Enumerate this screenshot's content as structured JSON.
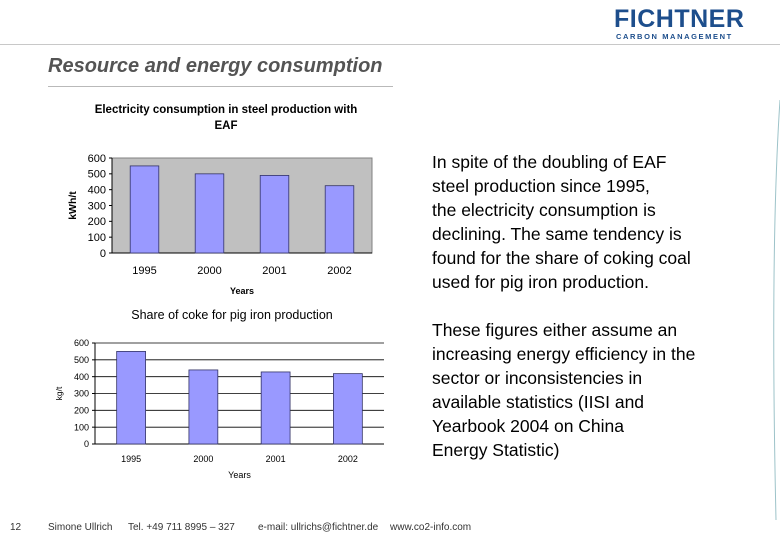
{
  "brand": {
    "name": "FICHTNER",
    "subtitle": "CARBON MANAGEMENT",
    "color": "#1d4e8c"
  },
  "slide": {
    "title": "Resource and energy consumption",
    "page_number": "12"
  },
  "chart_data": [
    {
      "type": "bar",
      "title": "Electricity consumption in steel production with EAF",
      "title_lines": [
        "Electricity consumption in steel production with",
        "EAF"
      ],
      "xlabel": "Years",
      "ylabel": "kWh/t",
      "categories": [
        "1995",
        "2000",
        "2001",
        "2002"
      ],
      "values": [
        550,
        500,
        490,
        425
      ],
      "ylim": [
        0,
        600
      ],
      "yticks": [
        0,
        100,
        200,
        300,
        400,
        500,
        600
      ],
      "grid": false,
      "bar_color": "#9999ff",
      "background": "#c0c0c0"
    },
    {
      "type": "bar",
      "title": "Share of coke for pig iron production",
      "xlabel": "Years",
      "ylabel": "kg/t",
      "categories": [
        "1995",
        "2000",
        "2001",
        "2002"
      ],
      "values": [
        550,
        440,
        428,
        418
      ],
      "ylim": [
        0,
        600
      ],
      "yticks": [
        0,
        100,
        200,
        300,
        400,
        500,
        600
      ],
      "grid": true,
      "bar_color": "#9999ff",
      "background": "#ffffff"
    }
  ],
  "text": {
    "paragraph1": "In spite of the doubling of EAF steel production since 1995, the electricity consumption is declining. The same tendency is found for the share of coking coal used for pig iron production.",
    "paragraph1_lines": [
      "In spite of the doubling of EAF",
      "steel production since 1995,",
      "the electricity consumption is",
      "declining. The same tendency is",
      "found for the share of coking coal",
      "used for pig iron production."
    ],
    "paragraph2": "These figures either assume an increasing energy efficiency in the sector or inconsistencies in available statistics (IISI and Yearbook 2004 on China Energy Statistic)",
    "paragraph2_lines": [
      "These figures either assume an",
      "increasing energy efficiency in the",
      "sector or inconsistencies in",
      "available statistics (IISI and",
      "Yearbook 2004 on China",
      "Energy Statistic)"
    ]
  },
  "footer": {
    "author": "Simone Ullrich",
    "phone": "Tel. +49 711 8995 – 327",
    "email": "e-mail: ullrichs@fichtner.de",
    "website": "www.co2-info.com"
  }
}
